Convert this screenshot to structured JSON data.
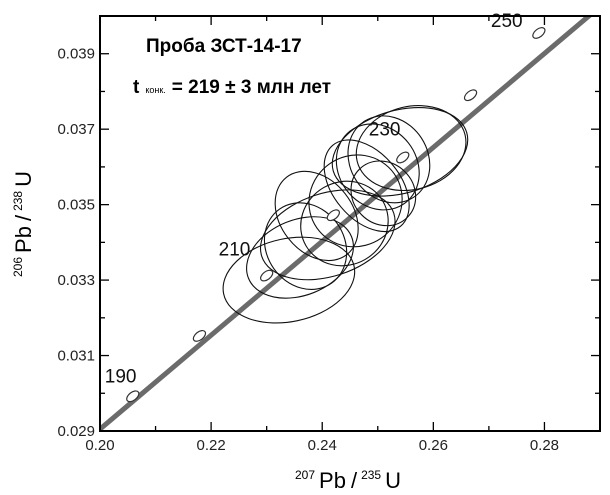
{
  "chart_data": {
    "type": "scatter",
    "title": "Проба ЗСТ-14-17",
    "annotation": {
      "prefix": "t",
      "subscript": "конк.",
      "value": "= 219 ± 3 млн лет"
    },
    "xlabel": {
      "mass1": "207",
      "element1": "Pb",
      "separator": "/",
      "mass2": "235",
      "element2": "U"
    },
    "ylabel": {
      "mass1": "206",
      "element1": "Pb",
      "separator": "/",
      "mass2": "238",
      "element2": "U"
    },
    "xlim": [
      0.2,
      0.29
    ],
    "ylim": [
      0.029,
      0.04
    ],
    "x_ticks": [
      {
        "value": 0.2,
        "label": "0.20"
      },
      {
        "value": 0.22,
        "label": "0.22"
      },
      {
        "value": 0.24,
        "label": "0.24"
      },
      {
        "value": 0.26,
        "label": "0.26"
      },
      {
        "value": 0.28,
        "label": "0.28"
      }
    ],
    "x_minor_ticks": [
      0.21,
      0.23,
      0.25,
      0.27
    ],
    "y_ticks": [
      {
        "value": 0.029,
        "label": "0.029"
      },
      {
        "value": 0.031,
        "label": "0.031"
      },
      {
        "value": 0.033,
        "label": "0.033"
      },
      {
        "value": 0.035,
        "label": "0.035"
      },
      {
        "value": 0.037,
        "label": "0.037"
      },
      {
        "value": 0.039,
        "label": "0.039"
      }
    ],
    "y_minor_ticks": [
      0.03,
      0.032,
      0.034,
      0.036,
      0.038
    ],
    "concordia": [
      [
        0.2,
        0.02905
      ],
      [
        0.29,
        0.04025
      ]
    ],
    "age_markers": [
      {
        "x": 0.2059,
        "y": 0.02992,
        "label": "190"
      },
      {
        "x": 0.2179,
        "y": 0.03152,
        "label": ""
      },
      {
        "x": 0.23,
        "y": 0.03312,
        "label": "210"
      },
      {
        "x": 0.242,
        "y": 0.03472,
        "label": ""
      },
      {
        "x": 0.2545,
        "y": 0.03625,
        "label": "230"
      },
      {
        "x": 0.2667,
        "y": 0.0379,
        "label": ""
      },
      {
        "x": 0.279,
        "y": 0.03955,
        "label": "250"
      }
    ],
    "ellipses": [
      {
        "cx": 0.234,
        "cy": 0.033,
        "rx": 0.012,
        "ry": 0.0011,
        "angle": 12
      },
      {
        "cx": 0.236,
        "cy": 0.0336,
        "rx": 0.01,
        "ry": 0.001,
        "angle": 22
      },
      {
        "cx": 0.241,
        "cy": 0.0342,
        "rx": 0.0125,
        "ry": 0.0011,
        "angle": 18
      },
      {
        "cx": 0.237,
        "cy": 0.0339,
        "rx": 0.007,
        "ry": 0.0012,
        "angle": 35
      },
      {
        "cx": 0.239,
        "cy": 0.0347,
        "rx": 0.0065,
        "ry": 0.0013,
        "angle": 38
      },
      {
        "cx": 0.244,
        "cy": 0.0345,
        "rx": 0.008,
        "ry": 0.0011,
        "angle": 30
      },
      {
        "cx": 0.246,
        "cy": 0.0351,
        "rx": 0.0085,
        "ry": 0.0012,
        "angle": 35
      },
      {
        "cx": 0.248,
        "cy": 0.0355,
        "rx": 0.006,
        "ry": 0.0014,
        "angle": 40
      },
      {
        "cx": 0.25,
        "cy": 0.036,
        "rx": 0.007,
        "ry": 0.0012,
        "angle": 38
      },
      {
        "cx": 0.252,
        "cy": 0.0362,
        "rx": 0.007,
        "ry": 0.0012,
        "angle": 33
      },
      {
        "cx": 0.254,
        "cy": 0.0364,
        "rx": 0.0125,
        "ry": 0.0011,
        "angle": 16
      },
      {
        "cx": 0.256,
        "cy": 0.0365,
        "rx": 0.01,
        "ry": 0.0011,
        "angle": 14
      },
      {
        "cx": 0.251,
        "cy": 0.0353,
        "rx": 0.0055,
        "ry": 0.0009,
        "angle": 45
      }
    ],
    "grid": false,
    "colors": {
      "concordia": "#6b6b6b",
      "ellipse": "#111111",
      "marker_fill": "#ffffff",
      "frame": "#000000"
    }
  }
}
